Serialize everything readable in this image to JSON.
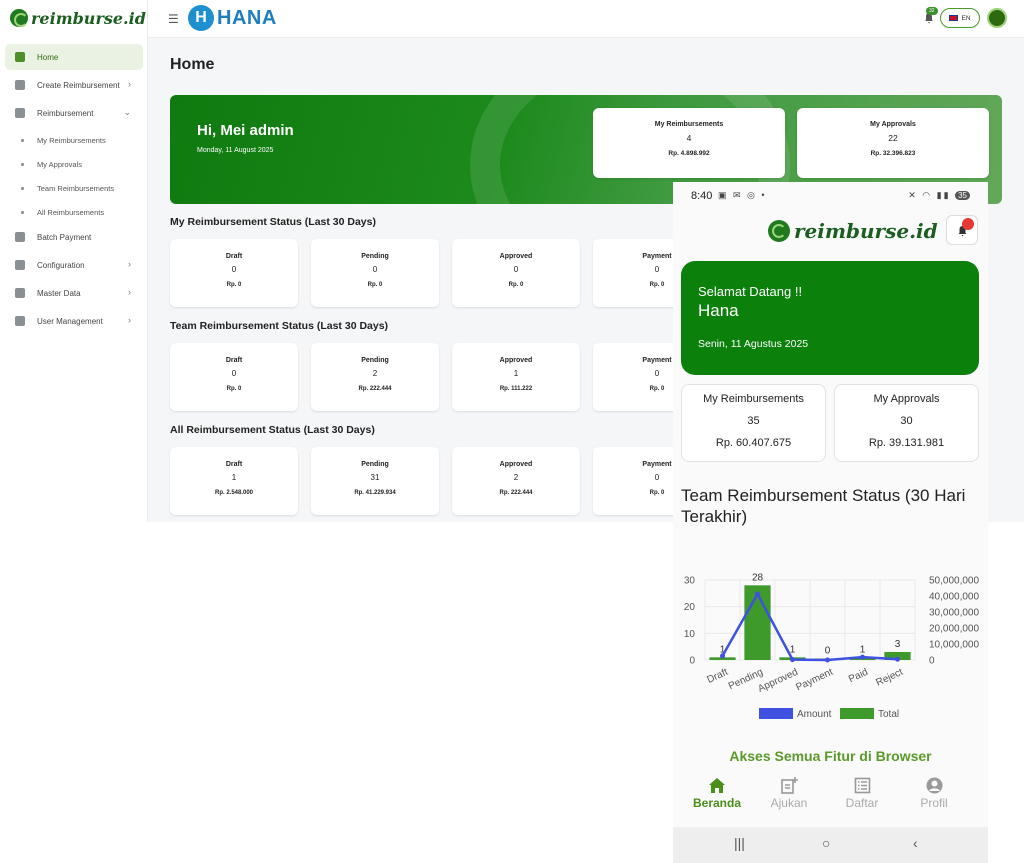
{
  "desktop": {
    "logo_text": "reimburse.id",
    "brand": {
      "letter": "H",
      "name": "HANA"
    },
    "notification_count": "32",
    "language": "EN",
    "sidebar": {
      "items": [
        {
          "label": "Home",
          "active": true,
          "chevron": ""
        },
        {
          "label": "Create Reimbursement",
          "chevron": "›"
        },
        {
          "label": "Reimbursement",
          "chevron": "⌄"
        }
      ],
      "sub_items": [
        "My Reimbursements",
        "My Approvals",
        "Team Reimbursements",
        "All Reimbursements"
      ],
      "items_after": [
        {
          "label": "Batch Payment",
          "chevron": ""
        },
        {
          "label": "Configuration",
          "chevron": "›"
        },
        {
          "label": "Master Data",
          "chevron": "›"
        },
        {
          "label": "User Management",
          "chevron": "›"
        }
      ]
    },
    "page_title": "Home",
    "hero": {
      "greeting": "Hi, Mei admin",
      "date": "Monday, 11 August 2025"
    },
    "summary": [
      {
        "title": "My Reimbursements",
        "count": "4",
        "amount": "Rp. 4.898.992"
      },
      {
        "title": "My Approvals",
        "count": "22",
        "amount": "Rp. 32.396.823"
      }
    ],
    "sections": [
      {
        "title": "My Reimbursement Status (Last 30 Days)",
        "cards": [
          {
            "title": "Draft",
            "count": "0",
            "amount": "Rp. 0"
          },
          {
            "title": "Pending",
            "count": "0",
            "amount": "Rp. 0"
          },
          {
            "title": "Approved",
            "count": "0",
            "amount": "Rp. 0"
          },
          {
            "title": "Payment",
            "count": "0",
            "amount": "Rp. 0"
          }
        ]
      },
      {
        "title": "Team Reimbursement Status (Last 30 Days)",
        "cards": [
          {
            "title": "Draft",
            "count": "0",
            "amount": "Rp. 0"
          },
          {
            "title": "Pending",
            "count": "2",
            "amount": "Rp. 222.444"
          },
          {
            "title": "Approved",
            "count": "1",
            "amount": "Rp. 111.222"
          },
          {
            "title": "Payment",
            "count": "0",
            "amount": "Rp. 0"
          }
        ]
      },
      {
        "title": "All Reimbursement Status (Last 30 Days)",
        "cards": [
          {
            "title": "Draft",
            "count": "1",
            "amount": "Rp. 2.548.000"
          },
          {
            "title": "Pending",
            "count": "31",
            "amount": "Rp. 41.229.934"
          },
          {
            "title": "Approved",
            "count": "2",
            "amount": "Rp. 222.444"
          },
          {
            "title": "Payment",
            "count": "0",
            "amount": "Rp. 0"
          }
        ]
      }
    ]
  },
  "mobile": {
    "status_bar": {
      "time": "8:40",
      "icons": "▣ ✉ ◎ •",
      "system": "✕ ◠ ▮▮",
      "battery": "35"
    },
    "logo_text": "reimburse.id",
    "hero": {
      "welcome": "Selamat Datang !!",
      "name": "Hana",
      "date": "Senin, 11 Agustus 2025"
    },
    "cards": [
      {
        "title": "My Reimbursements",
        "count": "35",
        "amount": "Rp. 60.407.675"
      },
      {
        "title": "My Approvals",
        "count": "30",
        "amount": "Rp. 39.131.981"
      }
    ],
    "chart_title": "Team Reimbursement Status (30 Hari Terakhir)",
    "cta": "Akses Semua Fitur di Browser",
    "tabs": [
      {
        "label": "Beranda",
        "icon": "home-icon",
        "active": true
      },
      {
        "label": "Ajukan",
        "icon": "add-document-icon"
      },
      {
        "label": "Daftar",
        "icon": "list-icon"
      },
      {
        "label": "Profil",
        "icon": "profile-icon"
      }
    ],
    "nav_buttons": [
      "|||",
      "○",
      "‹"
    ]
  },
  "chart_data": {
    "type": "bar",
    "categories": [
      "Draft",
      "Pending",
      "Approved",
      "Payment",
      "Paid",
      "Reject"
    ],
    "series": [
      {
        "name": "Total",
        "kind": "bar",
        "axis": "left",
        "values": [
          1,
          28,
          1,
          0,
          1,
          3
        ],
        "color": "#3e9b2b"
      },
      {
        "name": "Amount",
        "kind": "line",
        "axis": "right",
        "values": [
          2548000,
          41229934,
          222444,
          0,
          1800000,
          500000
        ],
        "color": "#3f51e0"
      }
    ],
    "ylim": [
      0,
      30
    ],
    "y_ticks": [
      0,
      10,
      20,
      30
    ],
    "y2lim": [
      0,
      50000000
    ],
    "y2_ticks": [
      "0",
      "10,000,000",
      "20,000,000",
      "30,000,000",
      "40,000,000",
      "50,000,000"
    ],
    "data_labels": [
      "1",
      "28",
      "1",
      "0",
      "1",
      "3"
    ],
    "legend": [
      "Amount",
      "Total"
    ],
    "legend_position": "bottom",
    "grid": true
  }
}
